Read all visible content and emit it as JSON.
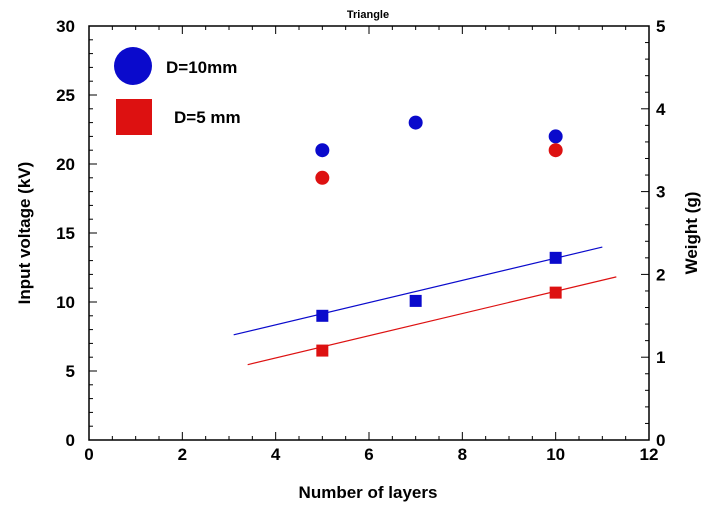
{
  "chart_data": {
    "type": "scatter",
    "title": "Triangle",
    "xlabel": "Number of layers",
    "ylabel_left": "Input voltage (kV)",
    "ylabel_right": "Weight (g)",
    "xlim": [
      0,
      12
    ],
    "ylim_left": [
      0,
      30
    ],
    "ylim_right": [
      0,
      5
    ],
    "x_ticks": [
      0,
      2,
      4,
      6,
      8,
      10,
      12
    ],
    "y_ticks_left": [
      0,
      5,
      10,
      15,
      20,
      25,
      30
    ],
    "y_ticks_right": [
      0,
      1,
      2,
      3,
      4,
      5
    ],
    "grid": false,
    "legend_position": "top-left",
    "series": [
      {
        "name": "D=10mm",
        "axis": "left",
        "marker": "circle",
        "color": "#0a0acc",
        "x": [
          5,
          7,
          10
        ],
        "y": [
          21,
          23,
          22
        ]
      },
      {
        "name": "D=5 mm",
        "axis": "left",
        "marker": "circle",
        "color": "#dd1111",
        "x": [
          5,
          10
        ],
        "y": [
          19,
          21
        ]
      },
      {
        "axis": "right",
        "marker": "square",
        "color": "#0a0acc",
        "x": [
          5,
          7,
          10
        ],
        "y": [
          1.5,
          1.68,
          2.2
        ]
      },
      {
        "axis": "right",
        "marker": "square",
        "color": "#dd1111",
        "x": [
          5,
          10
        ],
        "y": [
          1.08,
          1.78
        ]
      }
    ],
    "trendlines": [
      {
        "axis": "right",
        "color": "#0a0acc",
        "x": [
          3.1,
          11.0
        ],
        "y": [
          1.27,
          2.33
        ]
      },
      {
        "axis": "right",
        "color": "#dd1111",
        "x": [
          3.4,
          11.3
        ],
        "y": [
          0.91,
          1.97
        ]
      }
    ],
    "legend": [
      {
        "label": "D=10mm",
        "marker": "circle",
        "color": "#0a0acc"
      },
      {
        "label": "D=5 mm",
        "marker": "square",
        "color": "#dd1111"
      }
    ]
  }
}
